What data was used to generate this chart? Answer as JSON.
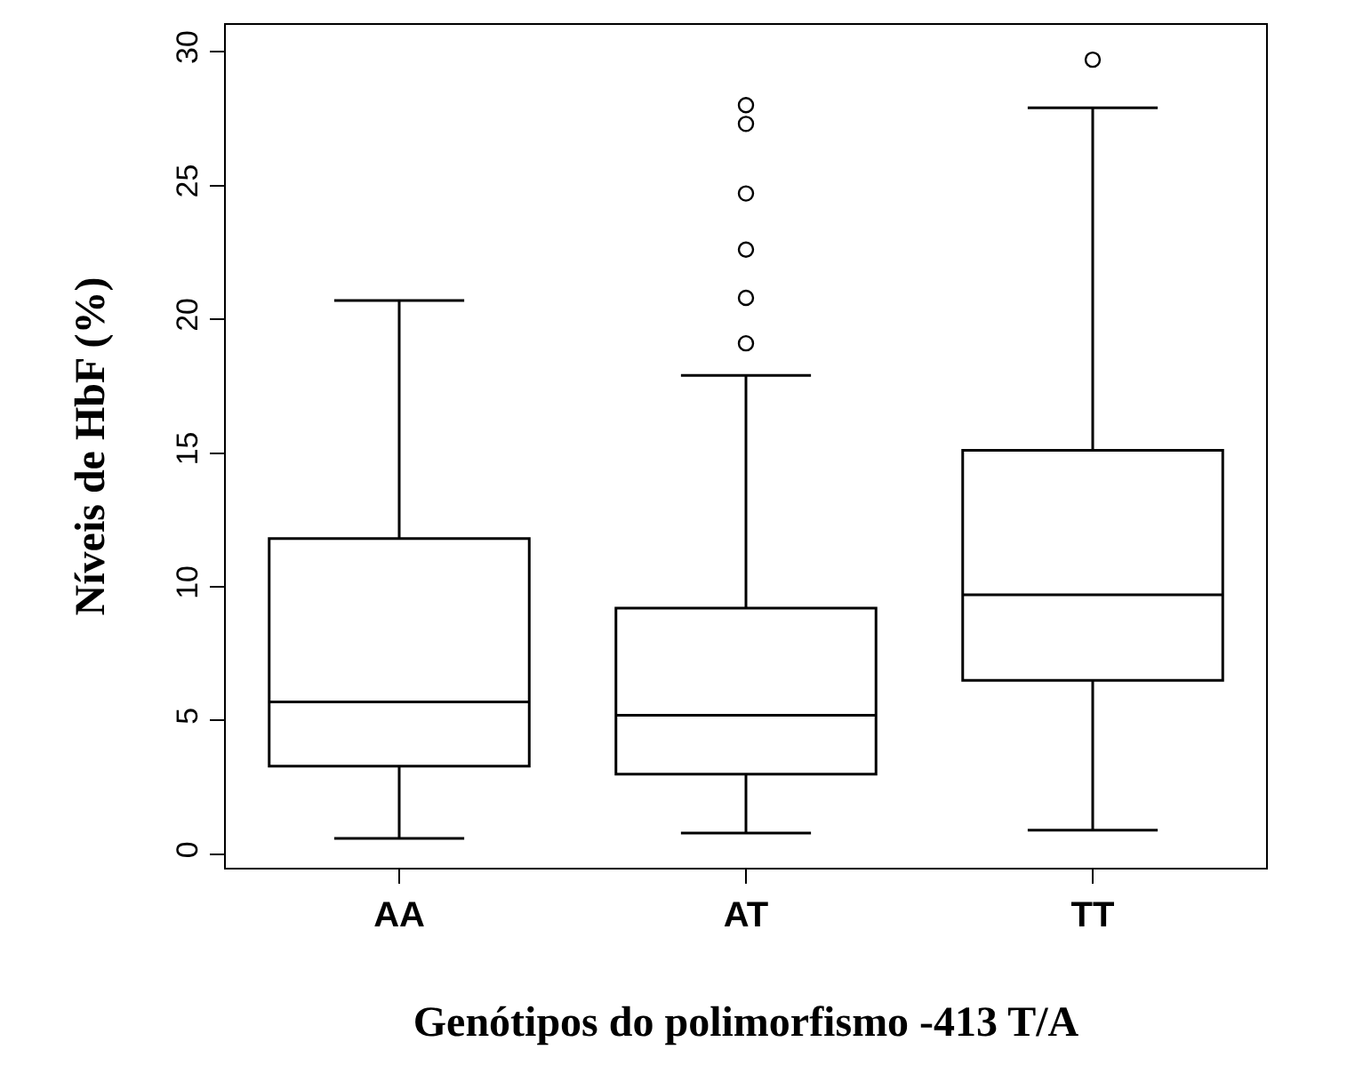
{
  "chart_data": {
    "type": "box",
    "xlabel": "Genótipos do polimorfismo -413 T/A",
    "ylabel": "Níveis de HbF (%)",
    "categories": [
      "AA",
      "AT",
      "TT"
    ],
    "boxes": [
      {
        "low": 0.6,
        "q1": 3.3,
        "median": 5.7,
        "q3": 11.8,
        "high": 20.7
      },
      {
        "low": 0.8,
        "q1": 3.0,
        "median": 5.2,
        "q3": 9.2,
        "high": 17.9,
        "outliers": [
          19.1,
          20.8,
          22.6,
          24.7,
          27.3,
          28.0
        ]
      },
      {
        "low": 0.9,
        "q1": 6.5,
        "median": 9.7,
        "q3": 15.1,
        "high": 27.9,
        "outliers": [
          29.7
        ]
      }
    ],
    "color": "#000000",
    "ylim": [
      -0.5,
      31
    ],
    "yticks": [
      0,
      5,
      10,
      15,
      20,
      25,
      30
    ],
    "grid": false,
    "marker": "circle"
  }
}
